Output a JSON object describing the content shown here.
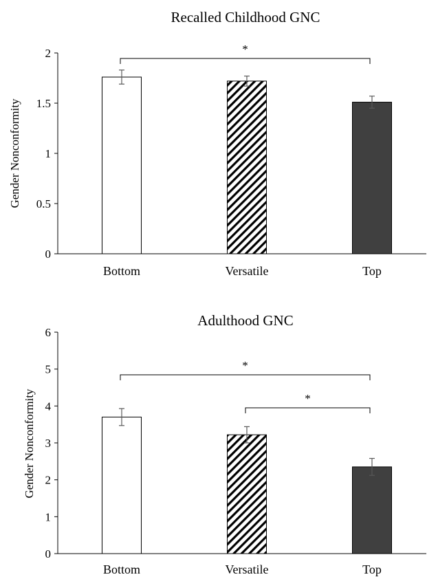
{
  "chart_data": [
    {
      "type": "bar",
      "title": "Recalled Childhood GNC",
      "xlabel": "",
      "ylabel": "Gender Nonconformity",
      "categories": [
        "Bottom",
        "Versatile",
        "Top"
      ],
      "values": [
        1.76,
        1.72,
        1.51
      ],
      "errors": [
        0.07,
        0.05,
        0.06
      ],
      "fills": [
        "white",
        "hatched",
        "dark"
      ],
      "ylim": [
        0,
        2
      ],
      "yticks": [
        "0",
        "0.5",
        "1",
        "1.5",
        "2"
      ],
      "ytick_values": [
        0,
        0.5,
        1,
        1.5,
        2
      ],
      "significance": [
        {
          "from": 0,
          "to": 2,
          "label": "*"
        }
      ]
    },
    {
      "type": "bar",
      "title": "Adulthood GNC",
      "xlabel": "",
      "ylabel": "Gender Nonconformity",
      "categories": [
        "Bottom",
        "Versatile",
        "Top"
      ],
      "values": [
        3.7,
        3.22,
        2.35
      ],
      "errors": [
        0.23,
        0.22,
        0.23
      ],
      "fills": [
        "white",
        "hatched",
        "dark"
      ],
      "ylim": [
        0,
        6
      ],
      "yticks": [
        "0",
        "1",
        "2",
        "3",
        "4",
        "5",
        "6"
      ],
      "ytick_values": [
        0,
        1,
        2,
        3,
        4,
        5,
        6
      ],
      "significance": [
        {
          "from": 0,
          "to": 2,
          "label": "*"
        },
        {
          "from": 1,
          "to": 2,
          "label": "*"
        }
      ]
    }
  ],
  "colors": {
    "dark_bar": "#404040",
    "outline": "#000000",
    "error_bar": "#595959",
    "bracket": "#000000"
  }
}
